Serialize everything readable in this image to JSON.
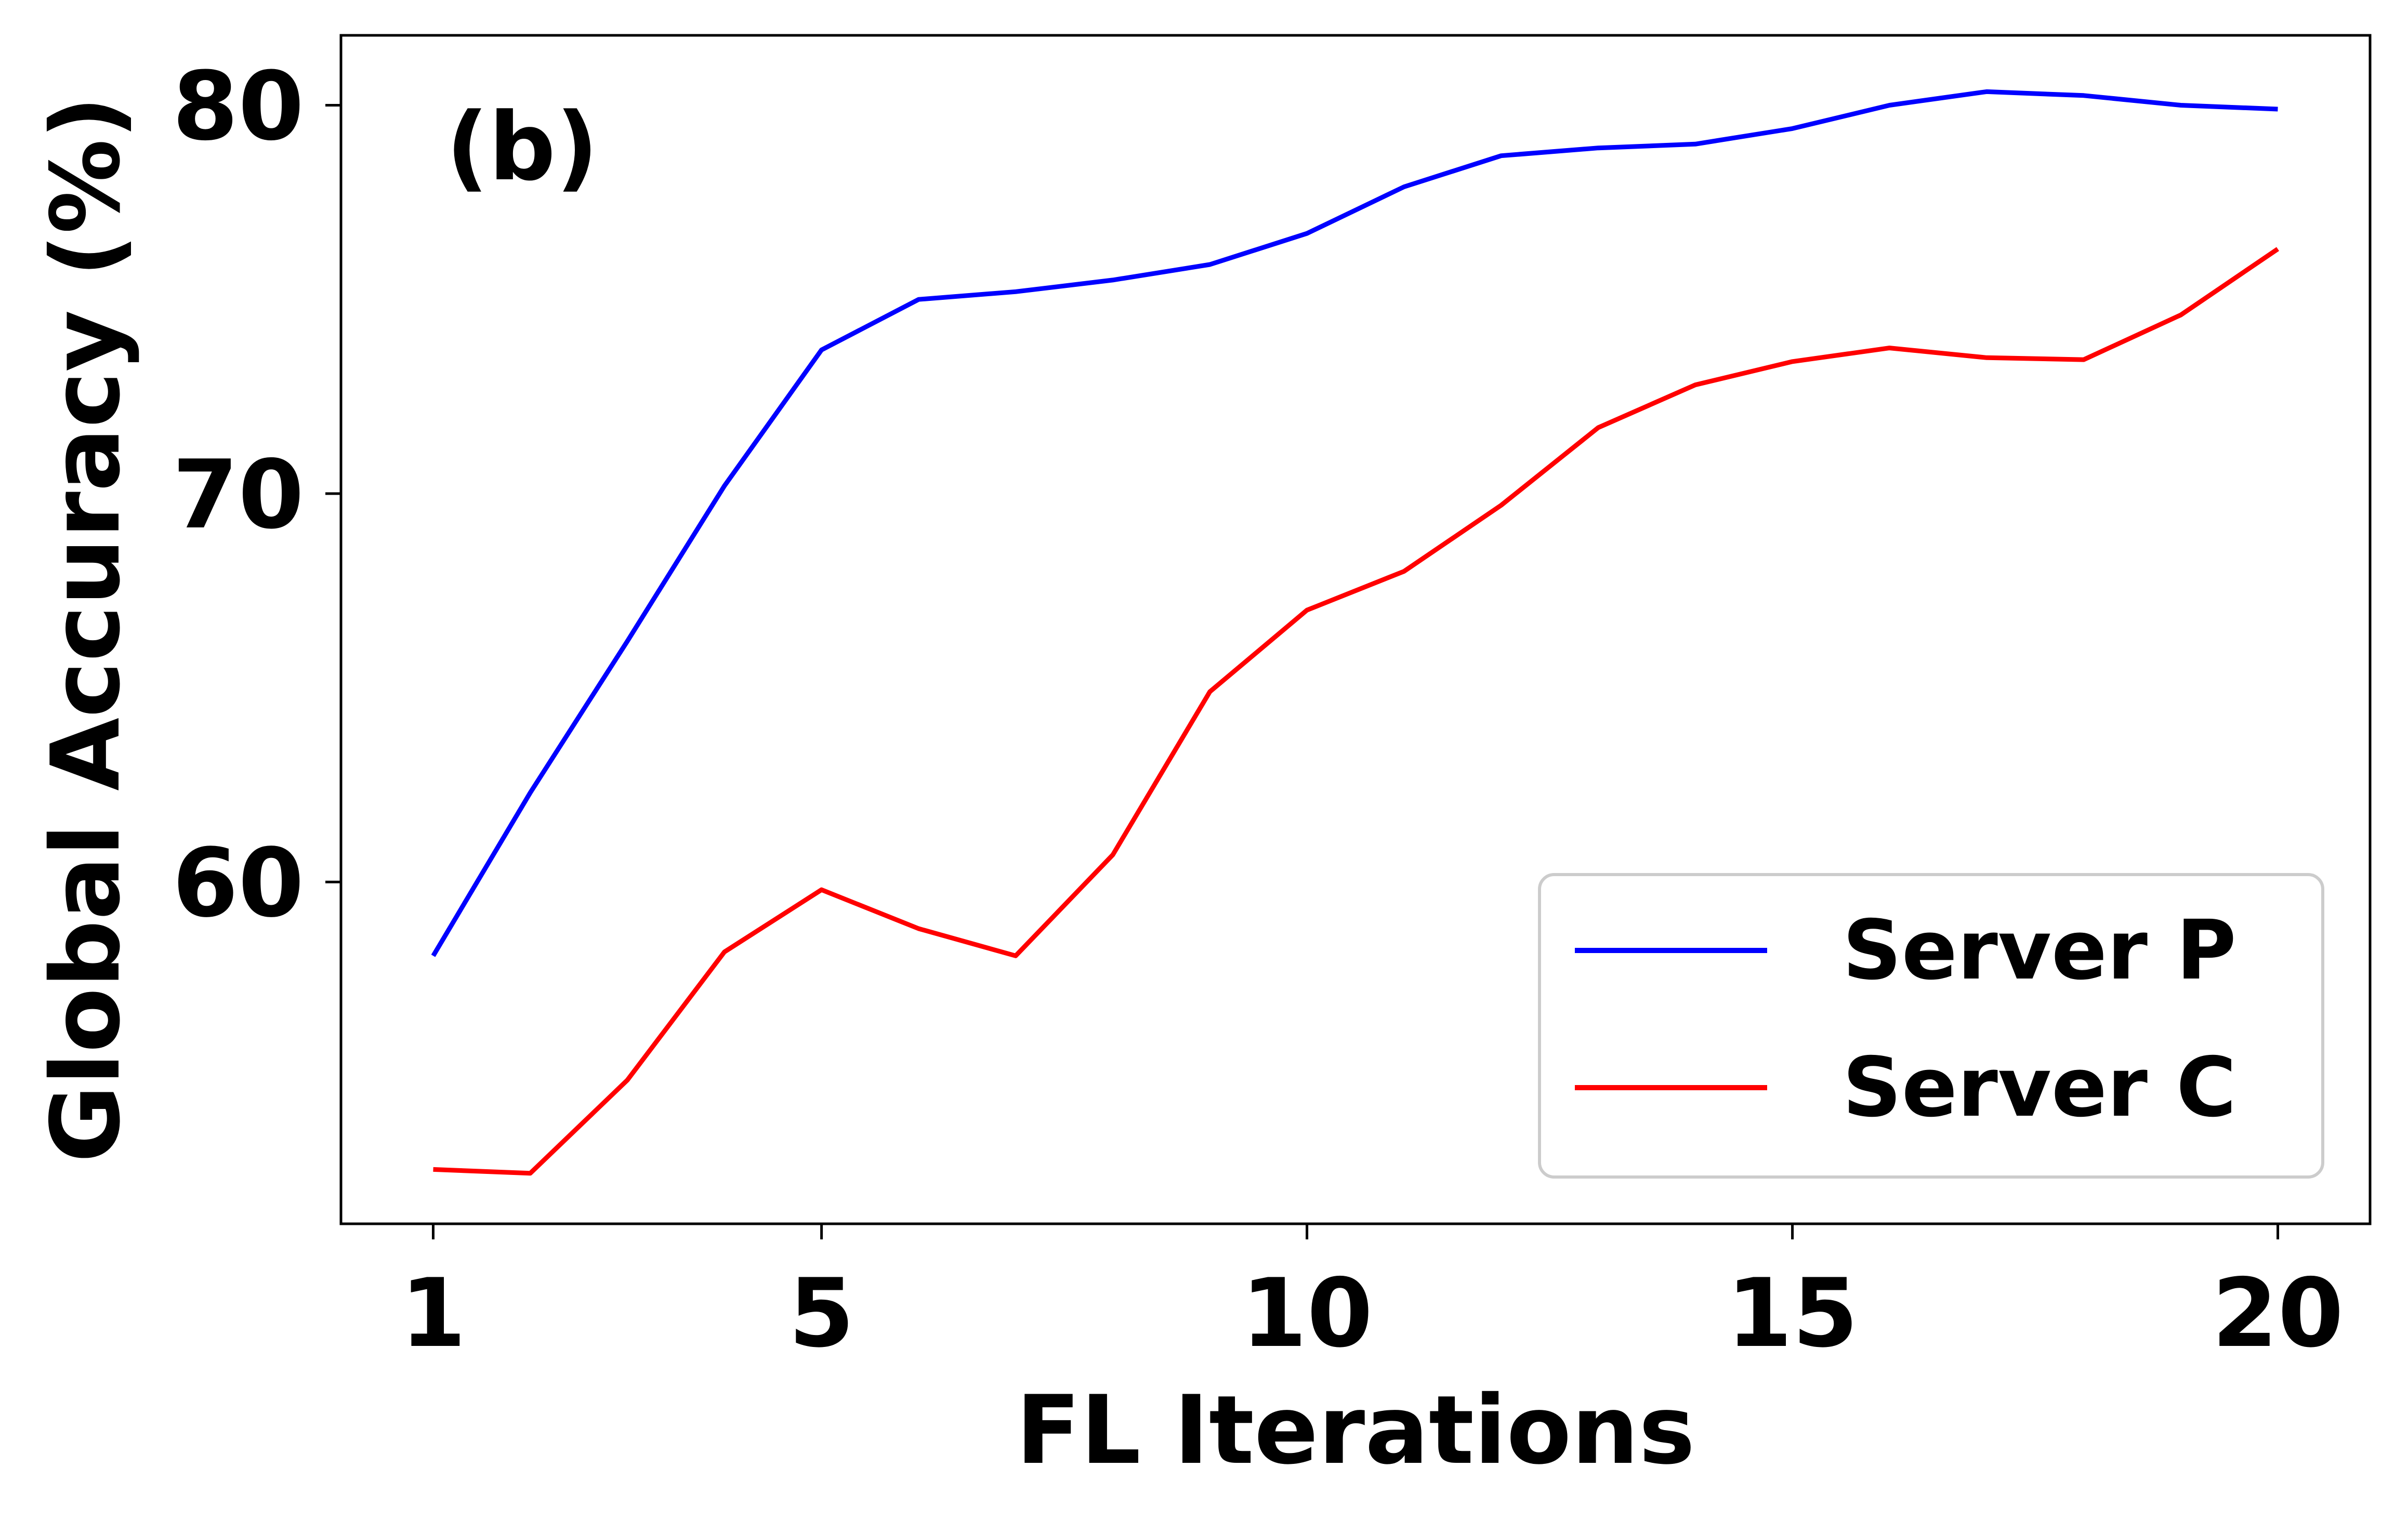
{
  "chart_data": {
    "type": "line",
    "panel_label": "(b)",
    "title": "",
    "xlabel": "FL Iterations",
    "ylabel": "Global Accuracy (%)",
    "x": [
      1,
      2,
      3,
      4,
      5,
      6,
      7,
      8,
      9,
      10,
      11,
      12,
      13,
      14,
      15,
      16,
      17,
      18,
      19,
      20
    ],
    "xticks": [
      1,
      5,
      10,
      15,
      20
    ],
    "xtick_labels": [
      "1",
      "5",
      "10",
      "15",
      "20"
    ],
    "yticks": [
      60,
      70,
      80
    ],
    "ytick_labels": [
      "60",
      "70",
      "80"
    ],
    "xlim": [
      0.05,
      20.95
    ],
    "ylim": [
      51.2,
      81.8
    ],
    "grid": false,
    "legend_position": "lower-right",
    "series": [
      {
        "name": "Server P",
        "color": "#0000ff",
        "values": [
          58.1,
          62.3,
          66.2,
          70.2,
          73.7,
          75.0,
          75.2,
          75.5,
          75.9,
          76.7,
          77.9,
          78.7,
          78.9,
          79.0,
          79.4,
          80.0,
          80.35,
          80.25,
          80.0,
          79.9
        ]
      },
      {
        "name": "Server C",
        "color": "#ff0000",
        "values": [
          52.6,
          52.5,
          54.9,
          58.2,
          59.8,
          58.8,
          58.1,
          60.7,
          64.9,
          67.0,
          68.0,
          69.7,
          71.7,
          72.8,
          73.4,
          73.75,
          73.5,
          73.45,
          74.6,
          76.3
        ]
      }
    ]
  }
}
